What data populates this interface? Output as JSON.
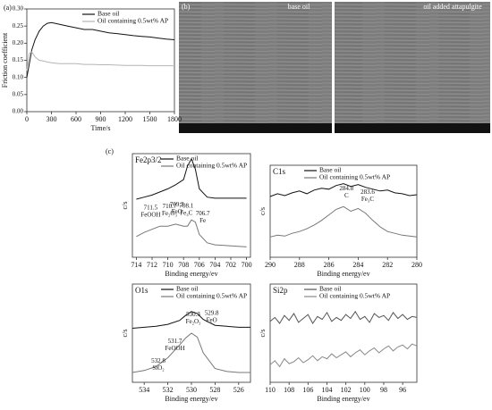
{
  "panel_labels": [
    "(a)",
    "(b)",
    "(c)"
  ],
  "sem_images": {
    "labels": [
      "base oil",
      "oil added attapulgite"
    ]
  },
  "chart_data": [
    {
      "type": "line",
      "xlabel": "Time/s",
      "ylabel": "Friction coefficient",
      "xlim": [
        0,
        1800
      ],
      "xticks": [
        0,
        300,
        600,
        900,
        1200,
        1500,
        1800
      ],
      "ylim": [
        0,
        0.3
      ],
      "yticks": [
        {
          "value": 0,
          "label": "0.00"
        },
        {
          "value": 0.05,
          "label": "0.05"
        },
        {
          "value": 0.1,
          "label": "0.10"
        },
        {
          "value": 0.15,
          "label": "0.15"
        },
        {
          "value": 0.2,
          "label": "0.20"
        },
        {
          "value": 0.25,
          "label": "0.25"
        },
        {
          "value": 0.3,
          "label": "0.30"
        }
      ],
      "x": [
        0,
        30,
        60,
        100,
        150,
        200,
        250,
        300,
        400,
        500,
        600,
        700,
        800,
        900,
        1000,
        1100,
        1200,
        1300,
        1400,
        1500,
        1600,
        1700,
        1800
      ],
      "series": [
        {
          "name": "Base oil",
          "color": "#111111",
          "values": [
            0.1,
            0.14,
            0.18,
            0.21,
            0.235,
            0.25,
            0.258,
            0.26,
            0.255,
            0.25,
            0.245,
            0.24,
            0.24,
            0.235,
            0.23,
            0.228,
            0.225,
            0.222,
            0.22,
            0.218,
            0.215,
            0.212,
            0.21
          ]
        },
        {
          "name": "Oil containing 0.5wt% AP",
          "color": "#b5b5b5",
          "values": [
            0.12,
            0.17,
            0.175,
            0.16,
            0.15,
            0.148,
            0.145,
            0.143,
            0.14,
            0.14,
            0.14,
            0.138,
            0.138,
            0.137,
            0.137,
            0.136,
            0.135,
            0.135,
            0.135,
            0.134,
            0.134,
            0.134,
            0.134
          ]
        }
      ]
    },
    {
      "type": "line",
      "title": "Fe2p3/2",
      "xlabel": "Binding energy/ev",
      "ylabel": "c/s",
      "xlim": [
        714.5,
        699.5
      ],
      "xticks": [
        714,
        712,
        710,
        708,
        706,
        704,
        702,
        700
      ],
      "ylim": [
        0,
        100
      ],
      "x": [
        714,
        713,
        712,
        711,
        710,
        709,
        708,
        707.5,
        707,
        706.5,
        706,
        705,
        704,
        702,
        700
      ],
      "series": [
        {
          "name": "Base oil",
          "color": "#111111",
          "values": [
            56,
            58,
            60,
            63,
            66,
            70,
            75,
            88,
            95,
            85,
            66,
            58,
            57,
            57,
            57
          ]
        },
        {
          "name": "Oil containing 0.5wt% AP",
          "color": "#777777",
          "values": [
            20,
            24,
            27,
            30,
            30,
            32,
            30,
            30,
            36,
            34,
            22,
            14,
            12,
            11,
            10
          ]
        }
      ],
      "annotations": [
        {
          "value": 711.5,
          "label": "FeOOH"
        },
        {
          "value": 710.7,
          "label": "Fe₂O₃"
        },
        {
          "value": 709.3,
          "label": "FeO"
        },
        {
          "value": 708.1,
          "label": "Fe₃C"
        },
        {
          "value": 706.7,
          "label": "Fe"
        }
      ]
    },
    {
      "type": "line",
      "title": "C1s",
      "xlabel": "Binding energy/ev",
      "ylabel": "c/s",
      "xlim": [
        290,
        280
      ],
      "xticks": [
        290,
        288,
        286,
        284,
        282,
        280
      ],
      "ylim": [
        0,
        100
      ],
      "x": [
        290,
        289.5,
        289,
        288.5,
        288,
        287.5,
        287,
        286.5,
        286,
        285.5,
        285,
        284.5,
        284,
        283.5,
        283,
        282.5,
        282,
        281.5,
        281,
        280.5,
        280
      ],
      "series": [
        {
          "name": "Base oil",
          "color": "#111111",
          "values": [
            66,
            69,
            67,
            70,
            72,
            69,
            73,
            75,
            74,
            78,
            80,
            77,
            79,
            76,
            74,
            72,
            73,
            70,
            69,
            67,
            68
          ]
        },
        {
          "name": "Oil containing 0.5wt% AP",
          "color": "#777777",
          "values": [
            22,
            24,
            23,
            26,
            28,
            31,
            35,
            40,
            46,
            52,
            55,
            50,
            53,
            48,
            40,
            33,
            28,
            26,
            24,
            23,
            22
          ]
        }
      ],
      "annotations": [
        {
          "value": 284.8,
          "label": "C"
        },
        {
          "value": 283.6,
          "label": "Fe₃C"
        }
      ]
    },
    {
      "type": "line",
      "title": "O1s",
      "xlabel": "Binding energy/ev",
      "ylabel": "c/s",
      "xlim": [
        535,
        525
      ],
      "xticks": [
        534,
        532,
        530,
        528,
        526
      ],
      "ylim": [
        0,
        100
      ],
      "x": [
        535,
        534,
        533,
        532,
        531,
        530.5,
        530,
        529.5,
        529,
        528,
        527,
        526,
        525
      ],
      "series": [
        {
          "name": "Base oil",
          "color": "#111111",
          "values": [
            55,
            56,
            57,
            59,
            63,
            68,
            72,
            70,
            64,
            58,
            57,
            56,
            56
          ]
        },
        {
          "name": "Oil containing 0.5wt% AP",
          "color": "#777777",
          "values": [
            10,
            12,
            16,
            25,
            38,
            45,
            50,
            46,
            30,
            14,
            11,
            10,
            10
          ]
        }
      ],
      "annotations": [
        {
          "value": 532.8,
          "label": "SiO₂"
        },
        {
          "value": 531.7,
          "label": "FeOOH"
        },
        {
          "value": 530.3,
          "label": "Fe₂O₃"
        },
        {
          "value": 529.8,
          "label": "FeO"
        }
      ]
    },
    {
      "type": "line",
      "title": "Si2p",
      "xlabel": "Binding energy/ev",
      "ylabel": "c/s",
      "xlim": [
        110,
        94.5
      ],
      "xticks": [
        110,
        108,
        106,
        104,
        102,
        100,
        98,
        96
      ],
      "ylim": [
        0,
        100
      ],
      "x": [
        110,
        109.5,
        109,
        108.5,
        108,
        107.5,
        107,
        106.5,
        106,
        105.5,
        105,
        104.5,
        104,
        103.5,
        103,
        102.5,
        102,
        101.5,
        101,
        100.5,
        100,
        99.5,
        99,
        98.5,
        98,
        97.5,
        97,
        96.5,
        96,
        95.5,
        95,
        94.5
      ],
      "series": [
        {
          "name": "Base oil",
          "color": "#555555",
          "values": [
            62,
            66,
            60,
            68,
            63,
            70,
            61,
            65,
            69,
            60,
            67,
            64,
            71,
            62,
            66,
            63,
            69,
            65,
            72,
            64,
            67,
            61,
            70,
            66,
            68,
            63,
            71,
            65,
            69,
            64,
            67,
            66
          ]
        },
        {
          "name": "Oil containing 0.5wt% AP",
          "color": "#888888",
          "values": [
            18,
            22,
            16,
            24,
            19,
            21,
            25,
            20,
            23,
            27,
            22,
            26,
            24,
            29,
            25,
            28,
            31,
            26,
            30,
            33,
            28,
            32,
            35,
            30,
            34,
            37,
            32,
            36,
            38,
            34,
            39,
            37
          ]
        }
      ]
    }
  ]
}
